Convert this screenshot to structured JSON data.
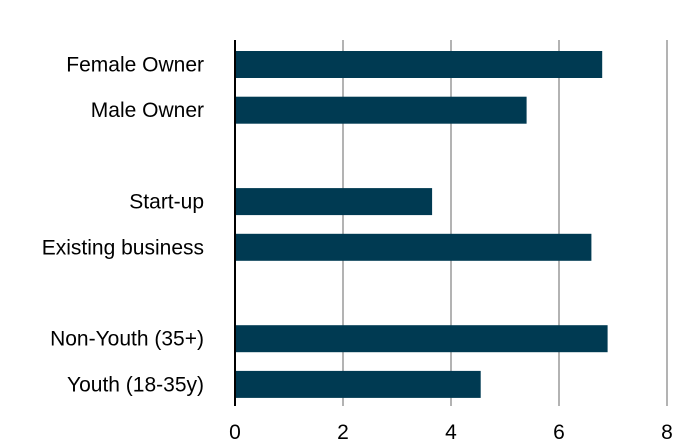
{
  "chart_data": {
    "type": "bar",
    "orientation": "horizontal",
    "categories": [
      "Female Owner",
      "Male Owner",
      "",
      "Start-up",
      "Existing business",
      "",
      "Non-Youth (35+)",
      "Youth (18-35y)"
    ],
    "values": [
      6.8,
      5.4,
      null,
      3.65,
      6.6,
      null,
      6.9,
      4.55
    ],
    "xlim": [
      0,
      8
    ],
    "xticks": [
      "0",
      "2",
      "4",
      "6",
      "8"
    ],
    "grid": "vertical",
    "legend": "none",
    "colors": {
      "bar": "#003a52",
      "grid": "#b3b3b3",
      "axis": "#000000"
    }
  }
}
